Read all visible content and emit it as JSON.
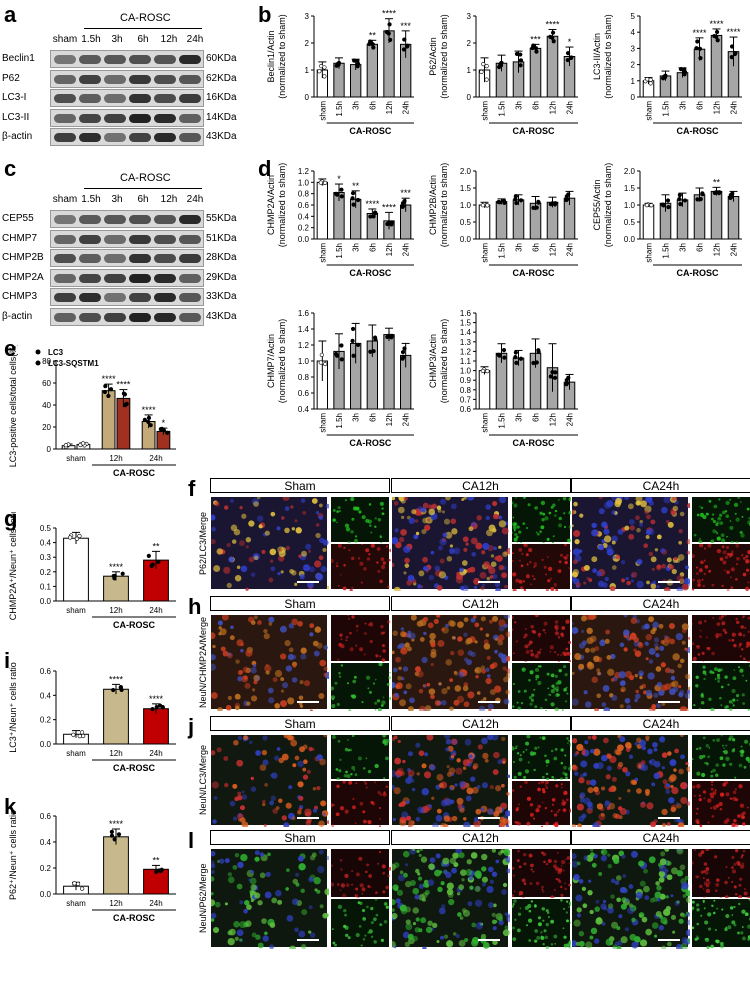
{
  "panels": {
    "a": "a",
    "b": "b",
    "c": "c",
    "d": "d",
    "e": "e",
    "f": "f",
    "g": "g",
    "h": "h",
    "i": "i",
    "j": "j",
    "k": "k",
    "l": "l"
  },
  "common": {
    "group_label": "CA-ROSC",
    "lanes": [
      "sham",
      "1.5h",
      "3h",
      "6h",
      "12h",
      "24h"
    ]
  },
  "blot_a": {
    "rows": [
      {
        "name": "Beclin1",
        "kda": "60KDa"
      },
      {
        "name": "P62",
        "kda": "62KDa"
      },
      {
        "name": "LC3-I",
        "kda": "16KDa"
      },
      {
        "name": "LC3-II",
        "kda": "14KDa"
      },
      {
        "name": "β-actin",
        "kda": "43KDa"
      }
    ]
  },
  "blot_c": {
    "rows": [
      {
        "name": "CEP55",
        "kda": "55KDa"
      },
      {
        "name": "CHMP7",
        "kda": "51KDa"
      },
      {
        "name": "CHMP2B",
        "kda": "28KDa"
      },
      {
        "name": "CHMP2A",
        "kda": "29KDa"
      },
      {
        "name": "CHMP3",
        "kda": "33KDa"
      },
      {
        "name": "β-actin",
        "kda": "43KDa"
      }
    ]
  },
  "chart_data": [
    {
      "id": "b1",
      "type": "bar",
      "ylabel": "Beclin1/Actin",
      "ylabel2": "(normalized to sham)",
      "categories": [
        "sham",
        "1.5h",
        "3h",
        "6h",
        "12h",
        "24h"
      ],
      "values": [
        1.0,
        1.25,
        1.2,
        1.95,
        2.45,
        1.95
      ],
      "errors": [
        0.3,
        0.2,
        0.2,
        0.15,
        0.45,
        0.5
      ],
      "ylim": [
        0,
        3
      ],
      "yticks": [
        "0",
        "1",
        "2",
        "3"
      ],
      "stars": [
        "",
        "",
        "",
        "**",
        "****",
        "***"
      ],
      "xlabel": "CA-ROSC"
    },
    {
      "id": "b2",
      "type": "bar",
      "ylabel": "P62/Actin",
      "ylabel2": "(normalized to sham)",
      "categories": [
        "sham",
        "1.5h",
        "3h",
        "6h",
        "12h",
        "24h"
      ],
      "values": [
        1.0,
        1.25,
        1.3,
        1.8,
        2.25,
        1.5
      ],
      "errors": [
        0.45,
        0.3,
        0.4,
        0.15,
        0.25,
        0.35
      ],
      "ylim": [
        0,
        3
      ],
      "yticks": [
        "0",
        "1",
        "2",
        "3"
      ],
      "stars": [
        "",
        "",
        "",
        "***",
        "****",
        "*"
      ],
      "xlabel": "CA-ROSC"
    },
    {
      "id": "b3",
      "type": "bar",
      "ylabel": "LC3-II/Actin",
      "ylabel2": "(normalized to sham)",
      "categories": [
        "sham",
        "1.5h",
        "3h",
        "6h",
        "12h",
        "24h"
      ],
      "values": [
        1.0,
        1.3,
        1.5,
        2.95,
        3.8,
        2.8
      ],
      "errors": [
        0.2,
        0.3,
        0.3,
        0.7,
        0.4,
        0.9
      ],
      "ylim": [
        0,
        5
      ],
      "yticks": [
        "0",
        "1",
        "2",
        "3",
        "4",
        "5"
      ],
      "stars": [
        "",
        "",
        "",
        "****",
        "****",
        "****"
      ],
      "xlabel": "CA-ROSC"
    },
    {
      "id": "d1",
      "type": "bar",
      "ylabel": "CHMP2A/Actin",
      "ylabel2": "(normalized to sham)",
      "categories": [
        "sham",
        "1.5h",
        "3h",
        "6h",
        "12h",
        "24h"
      ],
      "values": [
        1.0,
        0.82,
        0.7,
        0.45,
        0.32,
        0.6
      ],
      "errors": [
        0.06,
        0.15,
        0.15,
        0.08,
        0.15,
        0.12
      ],
      "ylim": [
        0,
        1.2
      ],
      "yticks": [
        "0.0",
        "0.2",
        "0.4",
        "0.6",
        "0.8",
        "1.0",
        "1.2"
      ],
      "stars": [
        "",
        "*",
        "**",
        "****",
        "****",
        "***"
      ],
      "xlabel": "CA-ROSC"
    },
    {
      "id": "d2",
      "type": "bar",
      "ylabel": "CHMP2B/Actin",
      "ylabel2": "(normalized to sham)",
      "categories": [
        "sham",
        "1.5h",
        "3h",
        "6h",
        "12h",
        "24h"
      ],
      "values": [
        1.0,
        1.1,
        1.15,
        1.05,
        1.08,
        1.2
      ],
      "errors": [
        0.08,
        0.08,
        0.15,
        0.2,
        0.15,
        0.2
      ],
      "ylim": [
        0,
        2.0
      ],
      "yticks": [
        "0.0",
        "0.5",
        "1.0",
        "1.5",
        "2.0"
      ],
      "stars": [
        "",
        "",
        "",
        "",
        "",
        ""
      ],
      "xlabel": "CA-ROSC"
    },
    {
      "id": "d3",
      "type": "bar",
      "ylabel": "CEP55/Actin",
      "ylabel2": "(normalized to sham)",
      "categories": [
        "sham",
        "1.5h",
        "3h",
        "6h",
        "12h",
        "24h"
      ],
      "values": [
        1.0,
        1.05,
        1.15,
        1.3,
        1.4,
        1.25
      ],
      "errors": [
        0.05,
        0.25,
        0.2,
        0.2,
        0.12,
        0.15
      ],
      "ylim": [
        0,
        2.0
      ],
      "yticks": [
        "0.0",
        "0.5",
        "1.0",
        "1.5",
        "2.0"
      ],
      "stars": [
        "",
        "",
        "",
        "",
        "**",
        ""
      ],
      "xlabel": "CA-ROSC"
    },
    {
      "id": "d4",
      "type": "bar",
      "ylabel": "CHMP7/Actin",
      "ylabel2": "(normalized to sham)",
      "categories": [
        "sham",
        "1.5h",
        "3h",
        "6h",
        "12h",
        "24h"
      ],
      "values": [
        1.0,
        1.12,
        1.22,
        1.25,
        1.33,
        1.07
      ],
      "errors": [
        0.25,
        0.22,
        0.25,
        0.2,
        0.08,
        0.15
      ],
      "ylim": [
        0.4,
        1.6
      ],
      "yticks": [
        "0.4",
        "0.6",
        "0.8",
        "1.0",
        "1.2",
        "1.4",
        "1.6"
      ],
      "stars": [
        "",
        "",
        "",
        "",
        "",
        ""
      ],
      "xlabel": "CA-ROSC"
    },
    {
      "id": "d5",
      "type": "bar",
      "ylabel": "CHMP3/Actin",
      "ylabel2": "(normalized to sham)",
      "categories": [
        "sham",
        "1.5h",
        "3h",
        "6h",
        "12h",
        "24h"
      ],
      "values": [
        1.0,
        1.18,
        1.13,
        1.18,
        1.03,
        0.88
      ],
      "errors": [
        0.04,
        0.1,
        0.08,
        0.15,
        0.25,
        0.08
      ],
      "ylim": [
        0.6,
        1.6
      ],
      "yticks": [
        "0.6",
        "0.7",
        "0.8",
        "0.9",
        "1.0",
        "1.1",
        "1.2",
        "1.3",
        "1.4",
        "1.5",
        "1.6"
      ],
      "stars": [
        "",
        "",
        "",
        "",
        "",
        ""
      ],
      "xlabel": "CA-ROSC"
    },
    {
      "id": "e",
      "type": "bar",
      "ylabel": "LC3-positive cells/total cells(%)",
      "categories": [
        "sham",
        "12h",
        "24h"
      ],
      "series": [
        {
          "name": "LC3",
          "values": [
            3,
            53,
            25
          ],
          "errors": [
            1.5,
            6,
            6
          ],
          "stars": [
            "",
            "****",
            "****"
          ]
        },
        {
          "name": "LC3-SQSTM1",
          "values": [
            4,
            46,
            16
          ],
          "errors": [
            1.5,
            8,
            3
          ],
          "stars": [
            "",
            "****",
            "*"
          ]
        }
      ],
      "ylim": [
        0,
        80
      ],
      "yticks": [
        "0",
        "20",
        "40",
        "60",
        "80"
      ],
      "xlabel": "CA-ROSC",
      "legend": "top-left"
    },
    {
      "id": "g",
      "type": "bar",
      "ylabel": "CHMP2A⁺/Neun⁺ cells ratio",
      "categories": [
        "sham",
        "12h",
        "24h"
      ],
      "values": [
        0.43,
        0.17,
        0.28
      ],
      "errors": [
        0.04,
        0.03,
        0.06
      ],
      "ylim": [
        0,
        0.5
      ],
      "yticks": [
        "0.0",
        "0.1",
        "0.2",
        "0.3",
        "0.4",
        "0.5"
      ],
      "stars": [
        "",
        "****",
        "**"
      ],
      "xlabel": "CA-ROSC"
    },
    {
      "id": "i",
      "type": "bar",
      "ylabel": "LC3⁺/Neun⁺ cells ratio",
      "categories": [
        "sham",
        "12h",
        "24h"
      ],
      "values": [
        0.08,
        0.45,
        0.29
      ],
      "errors": [
        0.03,
        0.04,
        0.04
      ],
      "ylim": [
        0,
        0.6
      ],
      "yticks": [
        "0.0",
        "0.2",
        "0.4",
        "0.6"
      ],
      "stars": [
        "",
        "****",
        "****"
      ],
      "xlabel": "CA-ROSC"
    },
    {
      "id": "k",
      "type": "bar",
      "ylabel": "P62⁺/Neun⁺ cells ratio",
      "categories": [
        "sham",
        "12h",
        "24h"
      ],
      "values": [
        0.06,
        0.44,
        0.19
      ],
      "errors": [
        0.03,
        0.06,
        0.03
      ],
      "ylim": [
        0,
        0.6
      ],
      "yticks": [
        "0.0",
        "0.2",
        "0.4",
        "0.6"
      ],
      "stars": [
        "",
        "****",
        "**"
      ],
      "xlabel": "CA-ROSC"
    }
  ],
  "micrographs": {
    "titles": [
      "Sham",
      "CA12h",
      "CA24h"
    ],
    "f": {
      "side": "P62/LC3/Merge"
    },
    "h": {
      "side": "NeuN/CHMP2A/Merge"
    },
    "j": {
      "side": "NeuN/LC3/Merge"
    },
    "l": {
      "side": "NeuN/P62/Merge"
    }
  },
  "colors": {
    "bar_sham": "#ffffff",
    "bar_gray": "#a6a6a6",
    "bar_tan": "#c8b98c",
    "bar_red": "#c00000",
    "bar_tan2": "#c4aa78",
    "bar_red2": "#a03020"
  }
}
